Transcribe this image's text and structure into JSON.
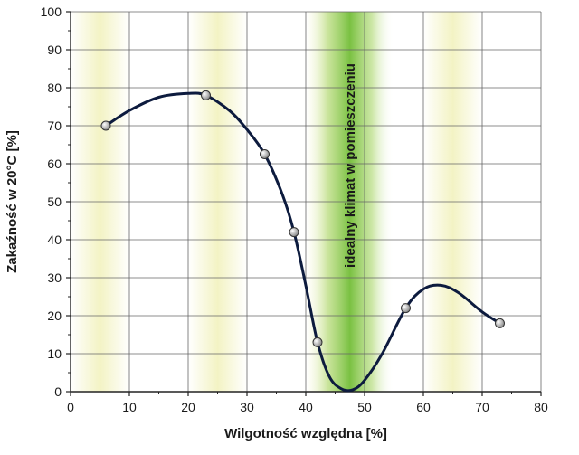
{
  "chart_data": {
    "type": "line",
    "xlabel": "Wilgotność względna [%]",
    "ylabel": "Zakaźność w 20°C [%]",
    "xlim": [
      0,
      80
    ],
    "ylim": [
      0,
      100
    ],
    "x_ticks": [
      0,
      10,
      20,
      30,
      40,
      50,
      60,
      70,
      80
    ],
    "y_ticks": [
      0,
      10,
      20,
      30,
      40,
      50,
      60,
      70,
      80,
      90,
      100
    ],
    "grid": true,
    "series": [
      {
        "points": [
          {
            "x": 6,
            "y": 70
          },
          {
            "x": 23,
            "y": 78
          },
          {
            "x": 33,
            "y": 62.5
          },
          {
            "x": 38,
            "y": 42
          },
          {
            "x": 42,
            "y": 13
          },
          {
            "x": 57,
            "y": 22
          },
          {
            "x": 73,
            "y": 18
          }
        ],
        "curve": [
          [
            6,
            70
          ],
          [
            10,
            74
          ],
          [
            15,
            77.5
          ],
          [
            20,
            78.5
          ],
          [
            23,
            78
          ],
          [
            27,
            74
          ],
          [
            30,
            69
          ],
          [
            33,
            62.5
          ],
          [
            36,
            52
          ],
          [
            38,
            42
          ],
          [
            40,
            28
          ],
          [
            42,
            13
          ],
          [
            44,
            4
          ],
          [
            46,
            0.8
          ],
          [
            48,
            0.5
          ],
          [
            50,
            3
          ],
          [
            53,
            10
          ],
          [
            57,
            22
          ],
          [
            60,
            27
          ],
          [
            63,
            28
          ],
          [
            66,
            26
          ],
          [
            70,
            21
          ],
          [
            73,
            18
          ]
        ],
        "color": "#0d1b3e"
      }
    ],
    "annotations": [
      {
        "text": "idealny klimat w pomieszczeniu",
        "x_range": [
          40,
          55
        ],
        "band_color": "#7ac142"
      }
    ],
    "colors": {
      "stripe_light": "#f3f3c8",
      "stripe_white": "#ffffff",
      "grid": "#666666",
      "point_fill": "#c8c8c8"
    }
  }
}
